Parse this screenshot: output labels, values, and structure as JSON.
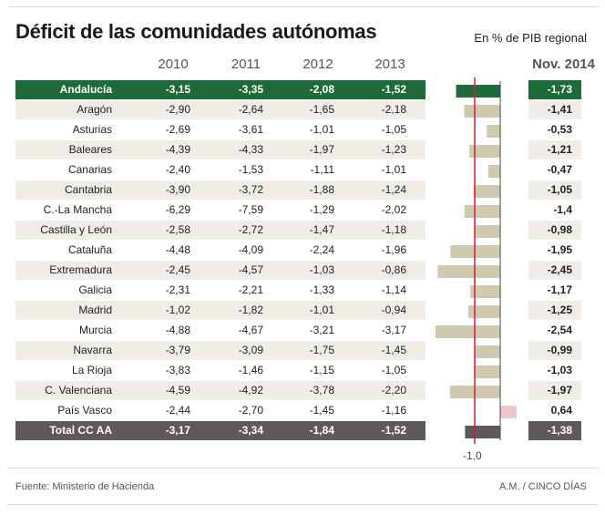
{
  "header": {
    "title": "Déficit de las comunidades autónomas",
    "subtitle": "En % de PIB regional"
  },
  "chart_data": {
    "type": "table",
    "title": "Déficit de las comunidades autónomas",
    "subtitle": "En % de PIB regional",
    "columns": [
      "2010",
      "2011",
      "2012",
      "2013"
    ],
    "nov_label": "Nov. 2014",
    "axis_tick_label": "-1,0",
    "axis_reference": -1.0,
    "bar_type": "bar",
    "colors": {
      "highlight": "#1e6b3a",
      "total": "#5f5a59",
      "bar": "#cfc9b0",
      "positive_bar": "#ebc9c6",
      "refline": "#d0202e",
      "stripe": "#efede6"
    },
    "rows": [
      {
        "name": "Andalucía",
        "values": [
          "-3,15",
          "-3,35",
          "-2,08",
          "-1,52"
        ],
        "nov": "-1,73",
        "nov_value": -1.73,
        "style": "highlight"
      },
      {
        "name": "Aragón",
        "values": [
          "-2,90",
          "-2,64",
          "-1,65",
          "-2,18"
        ],
        "nov": "-1,41",
        "nov_value": -1.41,
        "style": "normal"
      },
      {
        "name": "Asturias",
        "values": [
          "-2,69",
          "-3,61",
          "-1,01",
          "-1,05"
        ],
        "nov": "-0,53",
        "nov_value": -0.53,
        "style": "normal"
      },
      {
        "name": "Baleares",
        "values": [
          "-4,39",
          "-4,33",
          "-1,97",
          "-1,23"
        ],
        "nov": "-1,21",
        "nov_value": -1.21,
        "style": "normal"
      },
      {
        "name": "Canarias",
        "values": [
          "-2,40",
          "-1,53",
          "-1,11",
          "-1,01"
        ],
        "nov": "-0,47",
        "nov_value": -0.47,
        "style": "normal"
      },
      {
        "name": "Cantabria",
        "values": [
          "-3,90",
          "-3,72",
          "-1,88",
          "-1,24"
        ],
        "nov": "-1,05",
        "nov_value": -1.05,
        "style": "normal"
      },
      {
        "name": "C.-La Mancha",
        "values": [
          "-6,29",
          "-7,59",
          "-1,29",
          "-2,02"
        ],
        "nov": "-1,4",
        "nov_value": -1.4,
        "style": "normal"
      },
      {
        "name": "Castilla y León",
        "values": [
          "-2,58",
          "-2,72",
          "-1,47",
          "-1,18"
        ],
        "nov": "-0,98",
        "nov_value": -0.98,
        "style": "normal"
      },
      {
        "name": "Cataluña",
        "values": [
          "-4,48",
          "-4,09",
          "-2,24",
          "-1,96"
        ],
        "nov": "-1,95",
        "nov_value": -1.95,
        "style": "normal"
      },
      {
        "name": "Extremadura",
        "values": [
          "-2,45",
          "-4,57",
          "-1,03",
          "-0,86"
        ],
        "nov": "-2,45",
        "nov_value": -2.45,
        "style": "normal"
      },
      {
        "name": "Galicia",
        "values": [
          "-2,31",
          "-2,21",
          "-1,33",
          "-1,14"
        ],
        "nov": "-1,17",
        "nov_value": -1.17,
        "style": "normal"
      },
      {
        "name": "Madrid",
        "values": [
          "-1,02",
          "-1,82",
          "-1,01",
          "-0,94"
        ],
        "nov": "-1,25",
        "nov_value": -1.25,
        "style": "normal"
      },
      {
        "name": "Murcia",
        "values": [
          "-4,88",
          "-4,67",
          "-3,21",
          "-3,17"
        ],
        "nov": "-2,54",
        "nov_value": -2.54,
        "style": "normal"
      },
      {
        "name": "Navarra",
        "values": [
          "-3,79",
          "-3,09",
          "-1,75",
          "-1,45"
        ],
        "nov": "-0,99",
        "nov_value": -0.99,
        "style": "normal"
      },
      {
        "name": "La Rioja",
        "values": [
          "-3,83",
          "-1,46",
          "-1,15",
          "-1,05"
        ],
        "nov": "-1,03",
        "nov_value": -1.03,
        "style": "normal"
      },
      {
        "name": "C. Valenciana",
        "values": [
          "-4,59",
          "-4,92",
          "-3,78",
          "-2,20"
        ],
        "nov": "-1,97",
        "nov_value": -1.97,
        "style": "normal"
      },
      {
        "name": "País Vasco",
        "values": [
          "-2,44",
          "-2,70",
          "-1,45",
          "-1,16"
        ],
        "nov": "0,64",
        "nov_value": 0.64,
        "style": "normal"
      },
      {
        "name": "Total CC AA",
        "values": [
          "-3,17",
          "-3,34",
          "-1,84",
          "-1,52"
        ],
        "nov": "-1,38",
        "nov_value": -1.38,
        "style": "total"
      }
    ]
  },
  "footer": {
    "source": "Fuente: Ministerio de Hacienda",
    "credit": "A.M. / CINCO DÍAS"
  }
}
